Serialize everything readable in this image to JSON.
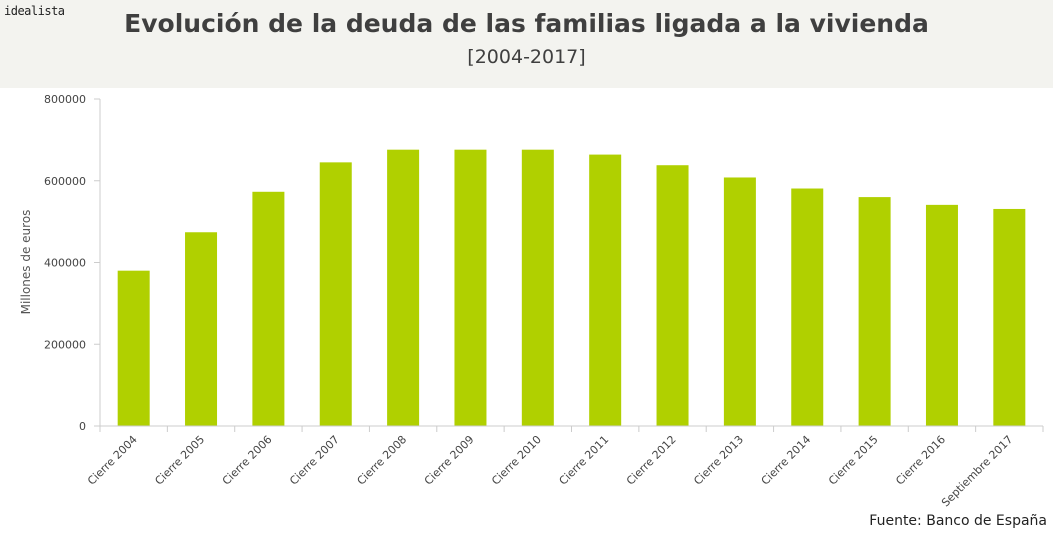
{
  "brand": "idealista",
  "header": {
    "title": "Evolución de la deuda de las familias ligada a la vivienda",
    "subtitle": "[2004-2017]"
  },
  "source": "Fuente: Banco de España",
  "colors": {
    "bar": "#b0d000",
    "axis": "#cccccc",
    "header_bg": "#f3f3ef"
  },
  "chart_data": {
    "type": "bar",
    "title": "Evolución de la deuda de las familias ligada a la vivienda",
    "subtitle": "[2004-2017]",
    "xlabel": "",
    "ylabel": "Millones de euros",
    "ylim": [
      0,
      800000
    ],
    "yticks": [
      0,
      200000,
      400000,
      600000,
      800000
    ],
    "ytick_labels": [
      "0",
      "200000",
      "400000",
      "600000",
      "800000"
    ],
    "grid": false,
    "categories": [
      "Cierre 2004",
      "Cierre 2005",
      "Cierre 2006",
      "Cierre 2007",
      "Cierre 2008",
      "Cierre 2009",
      "Cierre 2010",
      "Cierre 2011",
      "Cierre 2012",
      "Cierre 2013",
      "Cierre 2014",
      "Cierre 2015",
      "Cierre 2016",
      "Septiembre 2017"
    ],
    "values": [
      380000,
      474000,
      573000,
      645000,
      676000,
      676000,
      676000,
      664000,
      638000,
      608000,
      581000,
      560000,
      541000,
      531000
    ]
  }
}
